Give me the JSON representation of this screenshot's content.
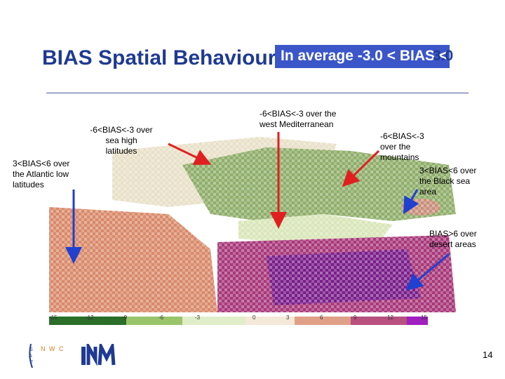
{
  "slide": {
    "title": "BIAS Spatial Behaviour",
    "badge": "In average -3.0 < BIAS <",
    "badge_tail": "3.0",
    "page_number": "14"
  },
  "annotations": {
    "atlantic_low": [
      "3<BIAS<6 over",
      "the Atlantic low",
      "latitudes"
    ],
    "sea_high": [
      "-6<BIAS<-3 over",
      "sea high",
      "latitudes"
    ],
    "west_med": [
      "-6<BIAS<-3 over the",
      "west Mediterranean"
    ],
    "mountains": [
      "-6<BIAS<-3",
      "over the",
      "mountains"
    ],
    "black_sea": [
      "3<BIAS<6 over",
      "the Black sea",
      "area"
    ],
    "desert": [
      "BIAS>6 over",
      "desert areas"
    ]
  },
  "colorbar": {
    "tick_labels": [
      "-15",
      "-12",
      "-9",
      "-6",
      "-3",
      "0",
      "3",
      "6",
      "9",
      "12",
      "15"
    ]
  },
  "logos": {
    "nwc_letters": [
      "S",
      "A",
      "F",
      "N",
      "W",
      "C"
    ],
    "inm": "INM"
  },
  "colors": {
    "title": "#1f3a93",
    "badge": "#3b56c8",
    "arrow_red": "#e02020",
    "arrow_blue": "#2040d0"
  }
}
